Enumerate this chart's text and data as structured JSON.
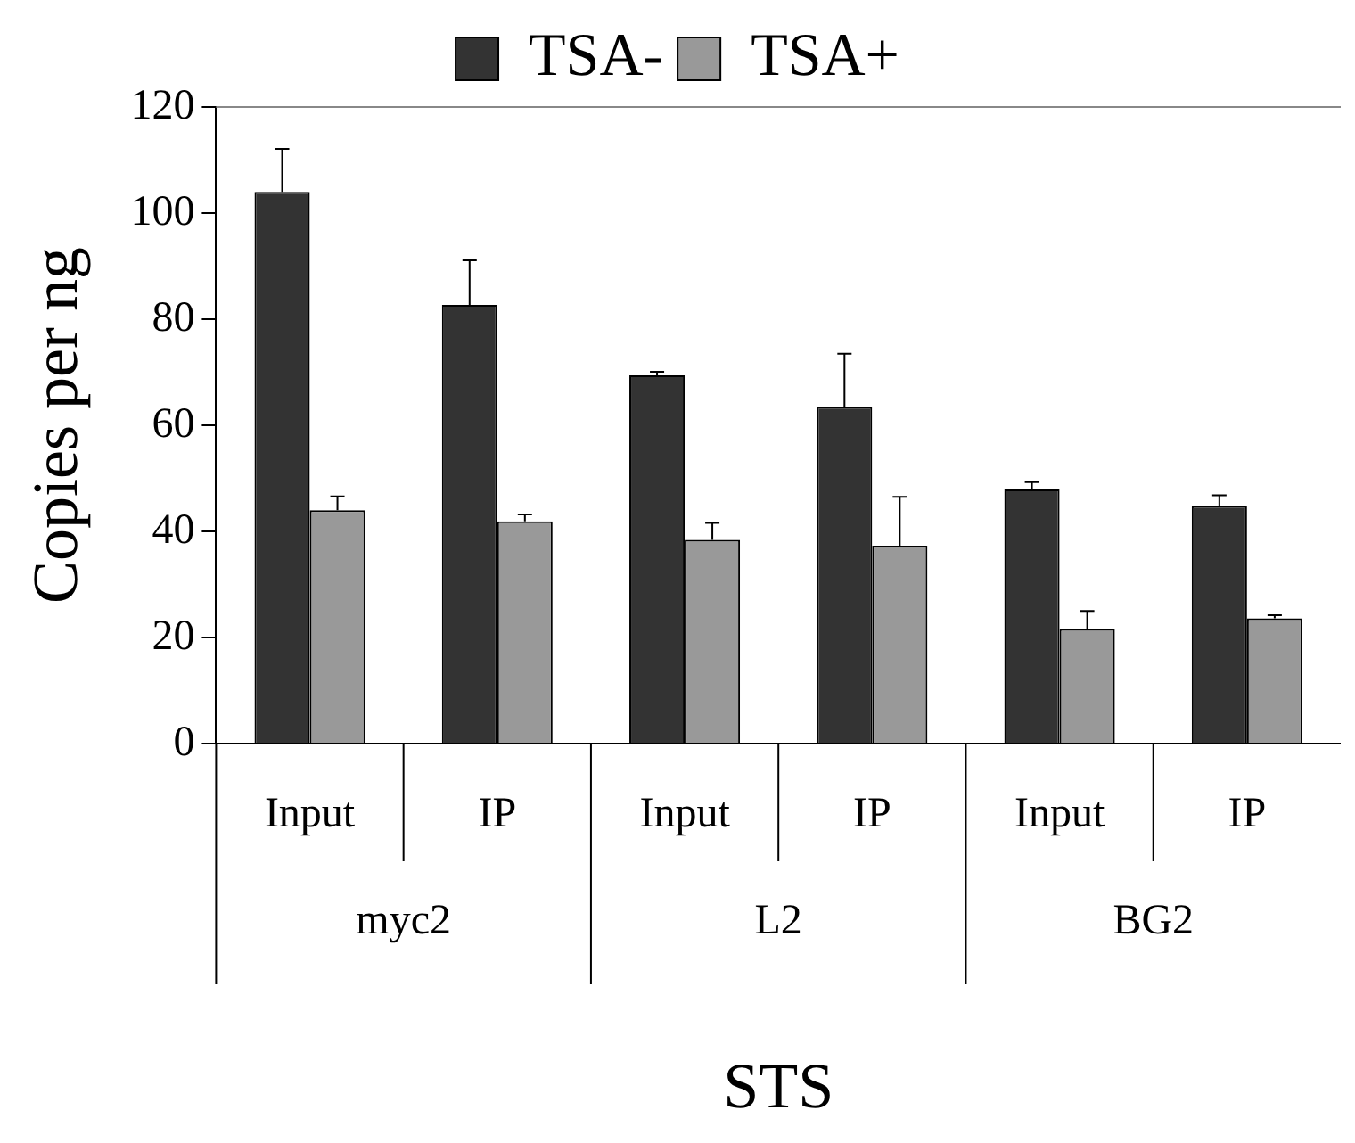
{
  "chart_data": {
    "type": "bar",
    "xlabel": "STS",
    "ylabel": "Copies per ng",
    "categories": [
      "Input",
      "IP",
      "Input",
      "IP",
      "Input",
      "IP"
    ],
    "annotations": [
      "myc2",
      "L2",
      "BG2"
    ],
    "series": [
      {
        "name": "TSA-",
        "color": "#333333",
        "values": [
          104.0,
          82.7,
          69.4,
          63.5,
          47.9,
          44.8
        ],
        "errors": [
          [
            104.0,
            112.1
          ],
          [
            82.7,
            91.1
          ],
          [
            69.4,
            70.1
          ],
          [
            63.5,
            73.5
          ],
          [
            47.9,
            49.3
          ],
          [
            44.8,
            46.8
          ]
        ]
      },
      {
        "name": "TSA+",
        "color": "#999999",
        "values": [
          44.0,
          41.9,
          38.4,
          37.3,
          21.6,
          23.6
        ],
        "errors": [
          [
            44.0,
            46.6
          ],
          [
            41.9,
            43.2
          ],
          [
            38.4,
            41.6
          ],
          [
            37.3,
            46.5
          ],
          [
            21.6,
            25.0
          ],
          [
            23.6,
            24.2
          ]
        ]
      }
    ],
    "ylim": [
      0,
      120
    ],
    "yticks": [
      0,
      20,
      40,
      60,
      80,
      100,
      120
    ],
    "legend": "top"
  }
}
